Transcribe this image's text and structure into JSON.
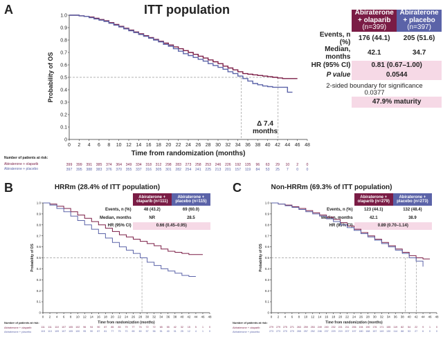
{
  "panels": {
    "A": {
      "letter": "A",
      "title": "ITT population",
      "table": {
        "ola_header": "Abiraterone + olaparib",
        "ola_n": "(n=399)",
        "pla_header": "Abiraterone + placebo",
        "pla_n": "(n=397)",
        "rows": [
          {
            "label": "Events, n (%)",
            "ola": "176 (44.1)",
            "pla": "205 (51.6)"
          },
          {
            "label": "Median, months",
            "ola": "42.1",
            "pla": "34.7"
          }
        ],
        "hr_label": "HR (95% CI)",
        "hr_value": "0.81 (0.67–1.00)",
        "p_label": "P value",
        "p_value": "0.0544",
        "boundary_label": "2-sided boundary for significance",
        "boundary_value": "0.0377",
        "maturity": "47.9% maturity"
      },
      "annotation_line1": "Δ 7.4",
      "annotation_line2": "months",
      "risk_title": "Number of patients at risk:",
      "risk_ola_label": "Abiraterone + olaparib",
      "risk_pla_label": "Abiraterone + placebo",
      "risk_ola": [
        "399",
        "399",
        "391",
        "385",
        "374",
        "364",
        "349",
        "334",
        "318",
        "312",
        "298",
        "283",
        "273",
        "258",
        "253",
        "246",
        "226",
        "192",
        "135",
        "96",
        "63",
        "29",
        "10",
        "2",
        "0"
      ],
      "risk_pla": [
        "397",
        "395",
        "388",
        "383",
        "376",
        "370",
        "355",
        "337",
        "316",
        "305",
        "301",
        "282",
        "254",
        "241",
        "225",
        "213",
        "201",
        "157",
        "119",
        "84",
        "53",
        "25",
        "7",
        "0",
        "0"
      ]
    },
    "B": {
      "letter": "B",
      "title": "HRRm (28.4% of ITT population)",
      "table": {
        "ola_header": "Abiraterone + olaparib (n=111)",
        "pla_header": "Abiraterone + placebo (n=115)",
        "rows": [
          {
            "label": "Events, n (%)",
            "ola": "48 (43.2)",
            "pla": "69 (60.0)"
          },
          {
            "label": "Median, months",
            "ola": "NR",
            "pla": "28.5"
          }
        ],
        "hr_label": "HR (95% CI)",
        "hr_value": "0.66 (0.45–0.95)"
      },
      "risk_title": "Number of patients at risk:",
      "risk_ola_label": "Abiraterone + olaparib",
      "risk_pla_label": "Abiraterone + placebo",
      "risk_ola": [
        "111",
        "111",
        "110",
        "107",
        "105",
        "102",
        "96",
        "94",
        "90",
        "87",
        "85",
        "83",
        "79",
        "77",
        "74",
        "72",
        "72",
        "65",
        "55",
        "42",
        "32",
        "15",
        "5",
        "1",
        "0"
      ],
      "risk_pla": [
        "115",
        "113",
        "109",
        "107",
        "105",
        "100",
        "95",
        "90",
        "87",
        "81",
        "77",
        "75",
        "70",
        "65",
        "60",
        "57",
        "56",
        "51",
        "40",
        "31",
        "25",
        "12",
        "4",
        "1",
        "0"
      ]
    },
    "C": {
      "letter": "C",
      "title": "Non-HRRm (69.3% of ITT population)",
      "table": {
        "ola_header": "Abiraterone + olaparib (n=279)",
        "pla_header": "Abiraterone + placebo (n=273)",
        "rows": [
          {
            "label": "Events, n (%)",
            "ola": "123 (44.1)",
            "pla": "132 (48.4)"
          },
          {
            "label": "Median, months",
            "ola": "42.1",
            "pla": "38.9"
          }
        ],
        "hr_label": "HR (95% CI)",
        "hr_value": "0.89 (0.70–1.14)"
      },
      "risk_title": "Number of patients at risk:",
      "risk_ola_label": "Abiraterone + olaparib",
      "risk_pla_label": "Abiraterone + placebo",
      "risk_ola": [
        "279",
        "279",
        "275",
        "271",
        "263",
        "259",
        "253",
        "249",
        "240",
        "232",
        "221",
        "211",
        "206",
        "194",
        "190",
        "176",
        "171",
        "155",
        "119",
        "82",
        "54",
        "22",
        "9",
        "1",
        "0"
      ],
      "risk_pla": [
        "273",
        "273",
        "270",
        "270",
        "265",
        "257",
        "252",
        "246",
        "237",
        "229",
        "219",
        "207",
        "197",
        "180",
        "168",
        "157",
        "149",
        "130",
        "114",
        "88",
        "53",
        "27",
        "6",
        "0",
        "0"
      ]
    }
  },
  "colors": {
    "olaparib": "#7a1c45",
    "placebo": "#5b63a8",
    "pink": "#f6d9e6"
  },
  "chart_data": [
    {
      "type": "line",
      "panel": "A",
      "title": "ITT population",
      "xlabel": "Time from randomization (months)",
      "ylabel": "Probability of OS",
      "xlim": [
        0,
        48
      ],
      "ylim": [
        0,
        1
      ],
      "x_ticks": [
        "0",
        "2",
        "4",
        "6",
        "8",
        "10",
        "12",
        "14",
        "16",
        "18",
        "20",
        "22",
        "24",
        "26",
        "28",
        "30",
        "32",
        "34",
        "36",
        "38",
        "40",
        "42",
        "44",
        "46",
        "48"
      ],
      "y_ticks": [
        "0",
        "0.1",
        "0.2",
        "0.3",
        "0.4",
        "0.5",
        "0.6",
        "0.7",
        "0.8",
        "0.9",
        "1.0"
      ],
      "medians": [
        34.7,
        42.1
      ],
      "series": [
        {
          "name": "Abiraterone + olaparib",
          "x": [
            0,
            1,
            2,
            3,
            4,
            5,
            6,
            7,
            8,
            9,
            10,
            11,
            12,
            13,
            14,
            15,
            16,
            17,
            18,
            19,
            20,
            21,
            22,
            23,
            24,
            25,
            26,
            27,
            28,
            29,
            30,
            31,
            32,
            33,
            34,
            35,
            36,
            37,
            38,
            39,
            40,
            41,
            42,
            43,
            44,
            45,
            46
          ],
          "y": [
            1.0,
            1.0,
            0.995,
            0.99,
            0.985,
            0.975,
            0.965,
            0.955,
            0.94,
            0.925,
            0.91,
            0.895,
            0.88,
            0.865,
            0.85,
            0.835,
            0.82,
            0.805,
            0.79,
            0.775,
            0.76,
            0.745,
            0.73,
            0.715,
            0.7,
            0.685,
            0.67,
            0.655,
            0.64,
            0.625,
            0.61,
            0.59,
            0.575,
            0.56,
            0.545,
            0.53,
            0.525,
            0.52,
            0.515,
            0.51,
            0.505,
            0.5,
            0.495,
            0.49,
            0.49,
            0.49,
            0.49
          ]
        },
        {
          "name": "Abiraterone + placebo",
          "x": [
            0,
            1,
            2,
            3,
            4,
            5,
            6,
            7,
            8,
            9,
            10,
            11,
            12,
            13,
            14,
            15,
            16,
            17,
            18,
            19,
            20,
            21,
            22,
            23,
            24,
            25,
            26,
            27,
            28,
            29,
            30,
            31,
            32,
            33,
            34,
            35,
            36,
            37,
            38,
            39,
            40,
            41,
            42,
            43,
            44,
            45
          ],
          "y": [
            1.0,
            1.0,
            0.995,
            0.99,
            0.98,
            0.97,
            0.96,
            0.95,
            0.935,
            0.92,
            0.905,
            0.89,
            0.875,
            0.86,
            0.845,
            0.83,
            0.815,
            0.8,
            0.785,
            0.765,
            0.75,
            0.73,
            0.71,
            0.69,
            0.675,
            0.66,
            0.645,
            0.63,
            0.61,
            0.595,
            0.58,
            0.565,
            0.545,
            0.53,
            0.51,
            0.49,
            0.47,
            0.45,
            0.44,
            0.43,
            0.425,
            0.42,
            0.42,
            0.42,
            0.38,
            0.38
          ]
        }
      ]
    },
    {
      "type": "line",
      "panel": "B",
      "title": "HRRm (28.4% of ITT population)",
      "xlabel": "Time from randomization (months)",
      "ylabel": "Probability of OS",
      "xlim": [
        0,
        48
      ],
      "ylim": [
        0,
        1
      ],
      "x_ticks": [
        "0",
        "2",
        "4",
        "6",
        "8",
        "10",
        "12",
        "14",
        "16",
        "18",
        "20",
        "22",
        "24",
        "26",
        "28",
        "30",
        "32",
        "34",
        "36",
        "38",
        "40",
        "42",
        "44",
        "46",
        "48"
      ],
      "y_ticks": [
        "0",
        "0.1",
        "0.2",
        "0.3",
        "0.4",
        "0.5",
        "0.6",
        "0.7",
        "0.8",
        "0.9",
        "1.0"
      ],
      "medians": [
        28.5
      ],
      "series": [
        {
          "name": "Abiraterone + olaparib",
          "x": [
            0,
            2,
            4,
            6,
            8,
            10,
            12,
            14,
            16,
            18,
            20,
            22,
            24,
            26,
            28,
            30,
            32,
            34,
            36,
            38,
            40,
            42,
            44,
            46
          ],
          "y": [
            1.0,
            0.99,
            0.97,
            0.95,
            0.92,
            0.89,
            0.86,
            0.83,
            0.8,
            0.77,
            0.74,
            0.71,
            0.69,
            0.67,
            0.65,
            0.63,
            0.61,
            0.58,
            0.56,
            0.55,
            0.54,
            0.53,
            0.53,
            0.53
          ]
        },
        {
          "name": "Abiraterone + placebo",
          "x": [
            0,
            2,
            4,
            6,
            8,
            10,
            12,
            14,
            16,
            18,
            20,
            22,
            24,
            26,
            28,
            30,
            32,
            34,
            36,
            38,
            40,
            42,
            44
          ],
          "y": [
            1.0,
            0.98,
            0.95,
            0.92,
            0.88,
            0.84,
            0.8,
            0.76,
            0.72,
            0.68,
            0.64,
            0.6,
            0.57,
            0.54,
            0.5,
            0.46,
            0.43,
            0.4,
            0.38,
            0.36,
            0.34,
            0.33,
            0.33
          ]
        }
      ]
    },
    {
      "type": "line",
      "panel": "C",
      "title": "Non-HRRm (69.3% of ITT population)",
      "xlabel": "Time from randomization (months)",
      "ylabel": "Probability of OS",
      "xlim": [
        0,
        48
      ],
      "ylim": [
        0,
        1
      ],
      "x_ticks": [
        "0",
        "2",
        "4",
        "6",
        "8",
        "10",
        "12",
        "14",
        "16",
        "18",
        "20",
        "22",
        "24",
        "26",
        "28",
        "30",
        "32",
        "34",
        "36",
        "38",
        "40",
        "42",
        "44",
        "46",
        "48"
      ],
      "y_ticks": [
        "0",
        "0.1",
        "0.2",
        "0.3",
        "0.4",
        "0.5",
        "0.6",
        "0.7",
        "0.8",
        "0.9",
        "1.0"
      ],
      "medians": [
        38.9,
        42.1
      ],
      "series": [
        {
          "name": "Abiraterone + olaparib",
          "x": [
            0,
            2,
            4,
            6,
            8,
            10,
            12,
            14,
            16,
            18,
            20,
            22,
            24,
            26,
            28,
            30,
            32,
            34,
            36,
            38,
            40,
            42,
            44,
            46
          ],
          "y": [
            1.0,
            0.99,
            0.98,
            0.965,
            0.95,
            0.93,
            0.91,
            0.89,
            0.87,
            0.85,
            0.82,
            0.79,
            0.76,
            0.73,
            0.7,
            0.67,
            0.64,
            0.61,
            0.58,
            0.55,
            0.52,
            0.5,
            0.49,
            0.49
          ]
        },
        {
          "name": "Abiraterone + placebo",
          "x": [
            0,
            2,
            4,
            6,
            8,
            10,
            12,
            14,
            16,
            18,
            20,
            22,
            24,
            26,
            28,
            30,
            32,
            34,
            36,
            38,
            40,
            42,
            44
          ],
          "y": [
            1.0,
            0.99,
            0.975,
            0.96,
            0.94,
            0.92,
            0.9,
            0.88,
            0.855,
            0.83,
            0.8,
            0.775,
            0.75,
            0.72,
            0.69,
            0.66,
            0.63,
            0.6,
            0.57,
            0.54,
            0.5,
            0.47,
            0.42
          ]
        }
      ]
    }
  ]
}
